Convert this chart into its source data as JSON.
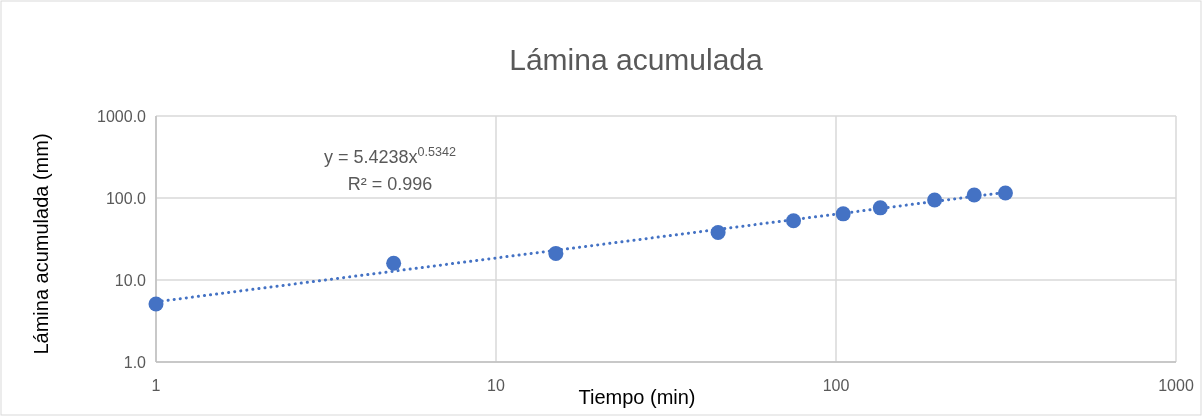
{
  "chart_data": {
    "type": "scatter",
    "title": "Lámina acumulada",
    "xlabel": "Tiempo (min)",
    "ylabel": "Lámina acumulada (mm)",
    "x": [
      1,
      5,
      15,
      45,
      75,
      105,
      135,
      195,
      255,
      315
    ],
    "series": [
      {
        "color": "#4472c4",
        "marker": "circle",
        "values": [
          5.1,
          16.0,
          21.1,
          38,
          52.8,
          64.1,
          75.8,
          94.6,
          108.7,
          115
        ]
      },
      {
        "type": "line",
        "color": "#4472c4",
        "line_style": "dotted",
        "x": [
          1,
          315
        ],
        "values": [
          5.42,
          117.2
        ]
      }
    ],
    "annotations": [
      "y = 5.4238x$^{0.5342}$",
      "R² = 0.996"
    ],
    "log": "xy",
    "grid": true,
    "xlim": [
      1,
      1000
    ],
    "xticks": [
      1,
      10,
      100,
      1000
    ],
    "ylim": [
      1,
      1000
    ],
    "yticks": [
      {
        "value": 1,
        "label": "1.0"
      },
      {
        "value": 10,
        "label": "10.0"
      },
      {
        "value": 100,
        "label": "100.0"
      },
      {
        "value": 1000,
        "label": "1000.0"
      }
    ]
  }
}
